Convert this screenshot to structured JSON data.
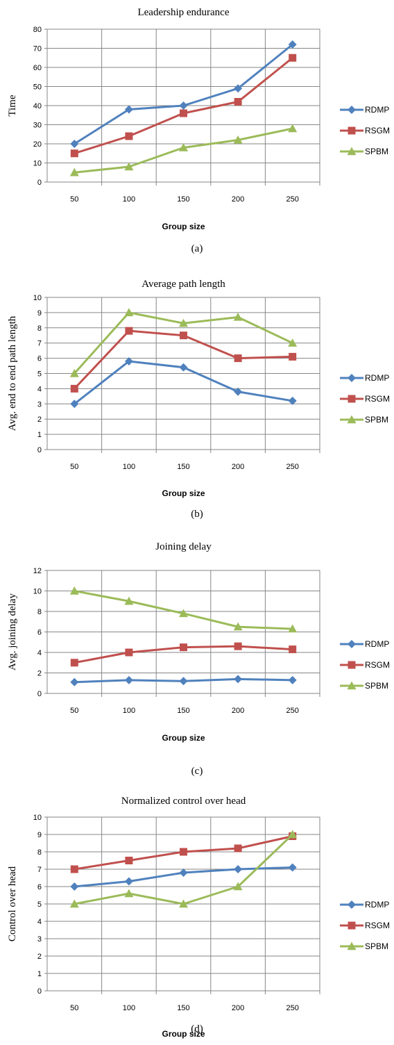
{
  "colors": {
    "RDMP": "#4f81bd",
    "RSGM": "#c0504d",
    "SPBM": "#9bbb59"
  },
  "chart_data": [
    {
      "type": "line",
      "title": "Leadership endurance",
      "xlabel": "Group size",
      "ylabel": "Time",
      "caption": "(a)",
      "categories": [
        "50",
        "100",
        "150",
        "200",
        "250"
      ],
      "ylim": [
        0,
        80
      ],
      "yticks": [
        "0",
        "10",
        "20",
        "30",
        "40",
        "50",
        "60",
        "70",
        "80"
      ],
      "grid": true,
      "legend_position": "right",
      "series": [
        {
          "name": "RDMP",
          "marker": "diamond",
          "values": [
            20,
            38,
            40,
            49,
            72
          ]
        },
        {
          "name": "RSGM",
          "marker": "square",
          "values": [
            15,
            24,
            36,
            42,
            65
          ]
        },
        {
          "name": "SPBM",
          "marker": "triangle",
          "values": [
            5,
            8,
            18,
            22,
            28
          ]
        }
      ]
    },
    {
      "type": "line",
      "title": "Average path length",
      "xlabel": "Group size",
      "ylabel": "Avg. end to end path length",
      "caption": "(b)",
      "categories": [
        "50",
        "100",
        "150",
        "200",
        "250"
      ],
      "ylim": [
        0,
        10
      ],
      "yticks": [
        "0",
        "1",
        "2",
        "3",
        "4",
        "5",
        "6",
        "7",
        "8",
        "9",
        "10"
      ],
      "grid": true,
      "legend_position": "right",
      "series": [
        {
          "name": "RDMP",
          "marker": "diamond",
          "values": [
            3,
            5.8,
            5.4,
            3.8,
            3.2
          ]
        },
        {
          "name": "RSGM",
          "marker": "square",
          "values": [
            4,
            7.8,
            7.5,
            6,
            6.1
          ]
        },
        {
          "name": "SPBM",
          "marker": "triangle",
          "values": [
            5,
            9,
            8.3,
            8.7,
            7
          ]
        }
      ]
    },
    {
      "type": "line",
      "title": "Joining delay",
      "xlabel": "Group size",
      "ylabel": "Avg. joining delay",
      "caption": "(c)",
      "categories": [
        "50",
        "100",
        "150",
        "200",
        "250"
      ],
      "ylim": [
        0,
        12
      ],
      "yticks": [
        "0",
        "2",
        "4",
        "6",
        "8",
        "10",
        "12"
      ],
      "grid": true,
      "legend_position": "right",
      "series": [
        {
          "name": "RDMP",
          "marker": "diamond",
          "values": [
            1.1,
            1.3,
            1.2,
            1.4,
            1.3
          ]
        },
        {
          "name": "RSGM",
          "marker": "square",
          "values": [
            3,
            4,
            4.5,
            4.6,
            4.3
          ]
        },
        {
          "name": "SPBM",
          "marker": "triangle",
          "values": [
            10,
            9,
            7.8,
            6.5,
            6.3
          ]
        }
      ]
    },
    {
      "type": "line",
      "title": "Normalized control over head",
      "xlabel": "Group size",
      "ylabel": "Control over head",
      "caption": "(d)",
      "categories": [
        "50",
        "100",
        "150",
        "200",
        "250"
      ],
      "ylim": [
        0,
        10
      ],
      "yticks": [
        "0",
        "1",
        "2",
        "3",
        "4",
        "5",
        "6",
        "7",
        "8",
        "9",
        "10"
      ],
      "grid": true,
      "legend_position": "right",
      "series": [
        {
          "name": "RDMP",
          "marker": "diamond",
          "values": [
            6,
            6.3,
            6.8,
            7,
            7.1
          ]
        },
        {
          "name": "RSGM",
          "marker": "square",
          "values": [
            7,
            7.5,
            8,
            8.2,
            8.9
          ]
        },
        {
          "name": "SPBM",
          "marker": "triangle",
          "values": [
            5,
            5.6,
            5,
            6,
            9
          ]
        }
      ]
    }
  ]
}
